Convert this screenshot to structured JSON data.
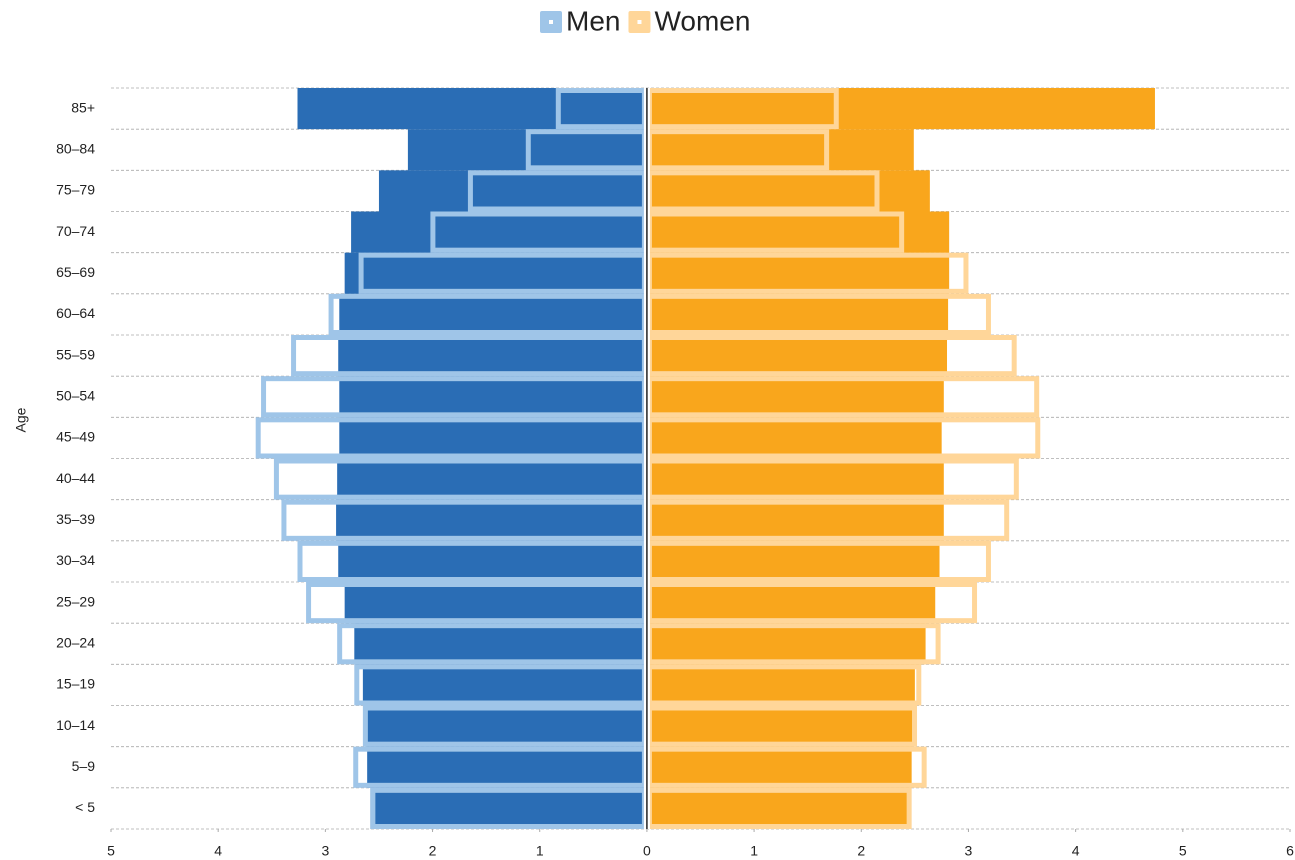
{
  "chart_data": {
    "type": "bar",
    "orientation": "horizontal",
    "y_label": "Age",
    "categories": [
      "85+",
      "80–84",
      "75–79",
      "70–74",
      "65–69",
      "60–64",
      "55–59",
      "50–54",
      "45–49",
      "40–44",
      "35–39",
      "30–34",
      "25–29",
      "20–24",
      "15–19",
      "10–14",
      "5–9",
      "< 5"
    ],
    "series": [
      {
        "style": "filled",
        "color": "#2a6db5",
        "values": [
          -3.26,
          -2.23,
          -2.5,
          -2.76,
          -2.82,
          -2.87,
          -2.88,
          -2.87,
          -2.87,
          -2.89,
          -2.9,
          -2.88,
          -2.82,
          -2.73,
          -2.65,
          -2.63,
          -2.61,
          -2.58
        ]
      },
      {
        "style": "filled",
        "color": "#f9a61c",
        "values": [
          4.74,
          2.49,
          2.64,
          2.82,
          2.82,
          2.81,
          2.8,
          2.77,
          2.75,
          2.77,
          2.77,
          2.73,
          2.69,
          2.6,
          2.5,
          2.48,
          2.47,
          2.44
        ]
      },
      {
        "name": "Men",
        "style": "outline",
        "color": "#9fc5e8",
        "values": [
          -0.85,
          -1.13,
          -1.67,
          -2.02,
          -2.69,
          -2.97,
          -3.32,
          -3.6,
          -3.65,
          -3.48,
          -3.41,
          -3.26,
          -3.18,
          -2.89,
          -2.73,
          -2.65,
          -2.74,
          -2.58
        ]
      },
      {
        "name": "Women",
        "style": "outline",
        "color": "#ffd699",
        "values": [
          1.79,
          1.7,
          2.17,
          2.4,
          3.0,
          3.21,
          3.45,
          3.66,
          3.67,
          3.47,
          3.38,
          3.21,
          3.08,
          2.74,
          2.56,
          2.52,
          2.61,
          2.47
        ]
      }
    ],
    "xlim": [
      -5,
      6
    ],
    "xticks": [
      {
        "value": -5,
        "label": "5"
      },
      {
        "value": -4,
        "label": "4"
      },
      {
        "value": -3,
        "label": "3"
      },
      {
        "value": -2,
        "label": "2"
      },
      {
        "value": -1,
        "label": "1"
      },
      0,
      1,
      2,
      3,
      4,
      5,
      6
    ],
    "legend": "top"
  }
}
